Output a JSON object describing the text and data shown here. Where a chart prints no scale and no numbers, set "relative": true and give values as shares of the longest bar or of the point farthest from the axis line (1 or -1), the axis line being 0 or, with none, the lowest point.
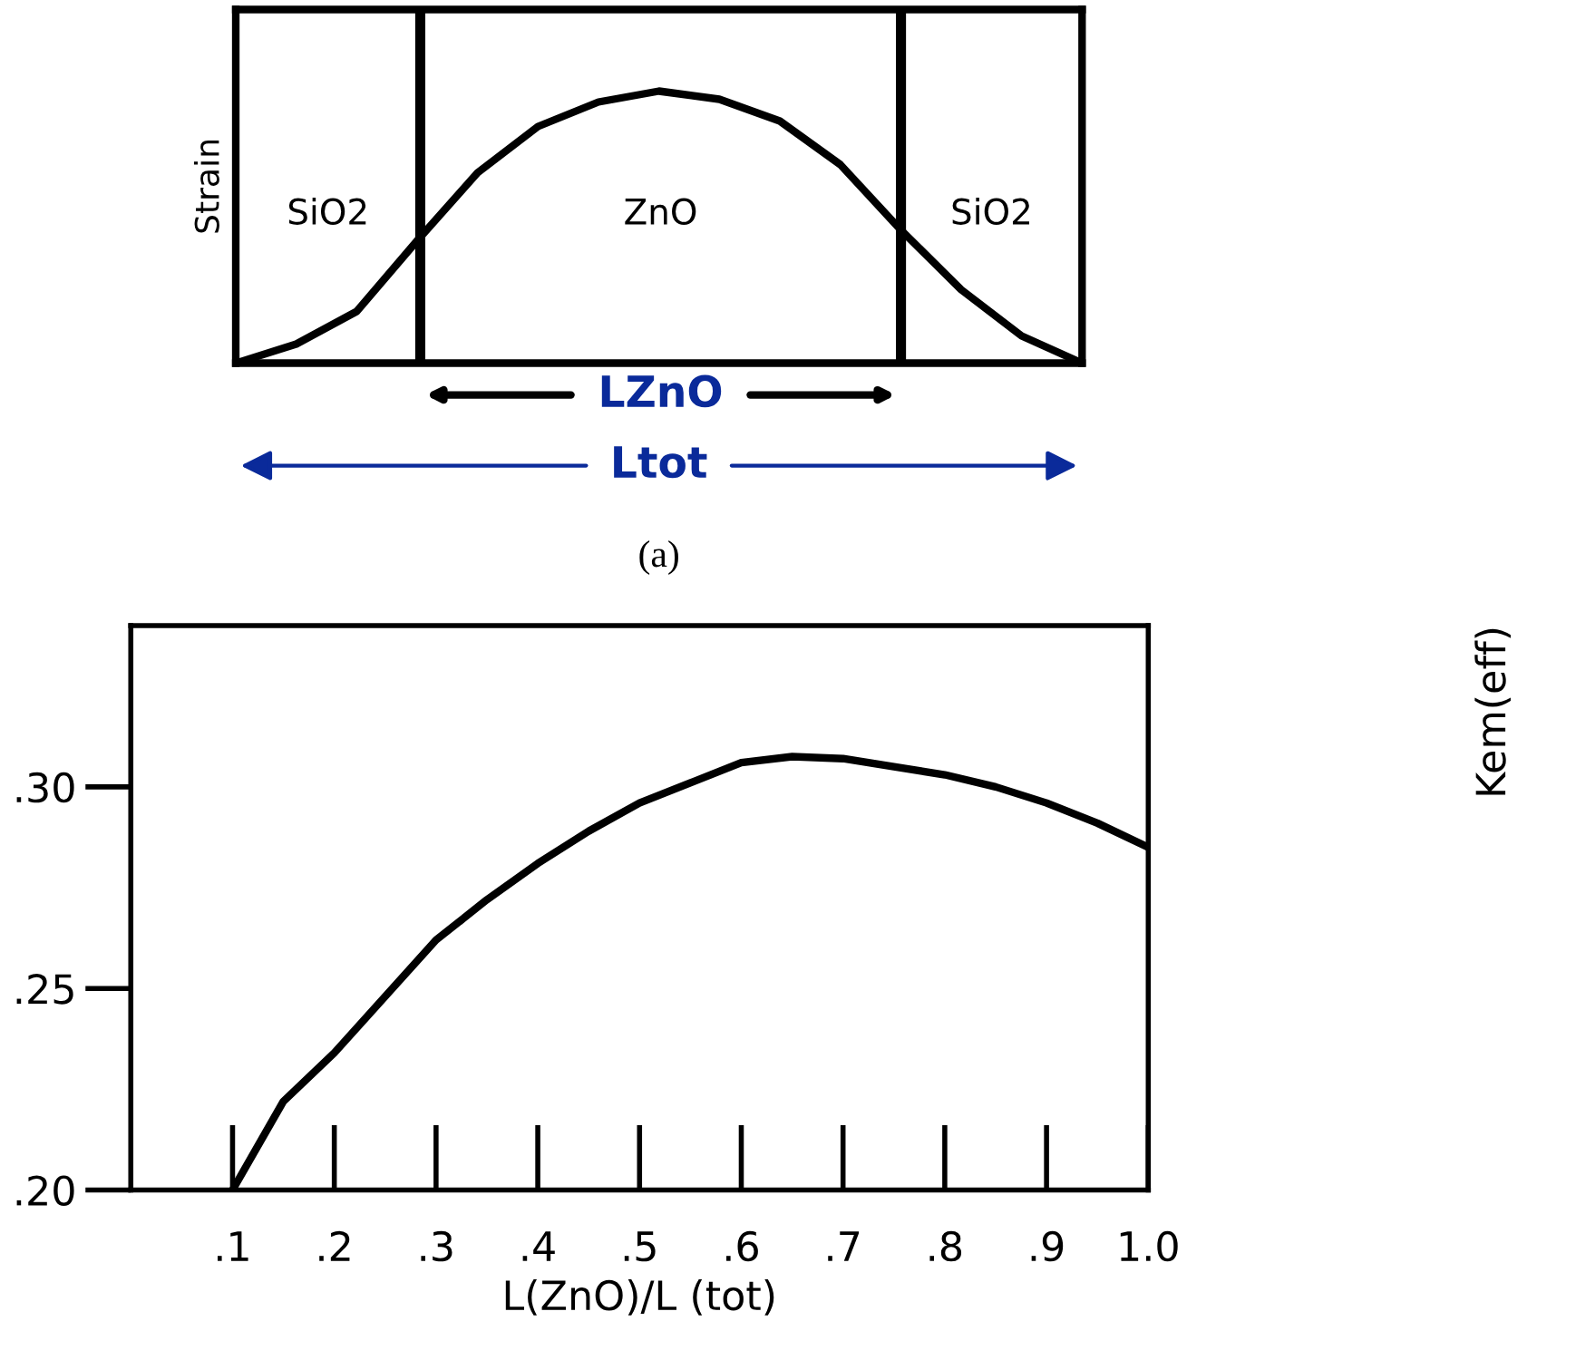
{
  "chart_data": [
    {
      "type": "line",
      "ylabel": "Strain",
      "relative": true,
      "grid": false,
      "legend": false,
      "categories": [
        null,
        null,
        null,
        null,
        null,
        null,
        null,
        null,
        null,
        null,
        null,
        null,
        null,
        null,
        null
      ],
      "series": [
        {
          "color": "#000000",
          "values": [
            0,
            0.07,
            0.19,
            0.45,
            0.7,
            0.87,
            0.96,
            1,
            0.97,
            0.89,
            0.73,
            0.49,
            0.27,
            0.1,
            0
          ]
        }
      ],
      "annotations": [
        "SiO2",
        "ZnO",
        "SiO2",
        "LZnO",
        "Ltot",
        "(a)"
      ]
    },
    {
      "type": "line",
      "xlabel": "L(ZnO)/L (tot)",
      "ylabel": "Kem(eff)",
      "grid": "x",
      "legend": false,
      "x": [
        0.1,
        0.15,
        0.2,
        0.25,
        0.3,
        0.35,
        0.4,
        0.45,
        0.5,
        0.55,
        0.6,
        0.65,
        0.7,
        0.75,
        0.8,
        0.85,
        0.9,
        0.95,
        1.0
      ],
      "series": [
        {
          "color": "#000000",
          "values": [
            0.2,
            0.222,
            0.234,
            0.248,
            0.262,
            0.272,
            0.281,
            0.289,
            0.296,
            0.301,
            0.306,
            0.3075,
            0.307,
            0.305,
            0.303,
            0.3,
            0.296,
            0.291,
            0.285
          ]
        }
      ],
      "xlim": [
        0.0,
        1.0
      ],
      "ylim": [
        0.2,
        0.34
      ],
      "xticks": [
        {
          "value": 0.1,
          "label": ".1"
        },
        {
          "value": 0.2,
          "label": ".2"
        },
        {
          "value": 0.3,
          "label": ".3"
        },
        {
          "value": 0.4,
          "label": ".4"
        },
        {
          "value": 0.5,
          "label": ".5"
        },
        {
          "value": 0.6,
          "label": ".6"
        },
        {
          "value": 0.7,
          "label": ".7"
        },
        {
          "value": 0.8,
          "label": ".8"
        },
        {
          "value": 0.9,
          "label": ".9"
        },
        {
          "value": 1.0,
          "label": "1.0"
        }
      ],
      "yticks": [
        {
          "value": 0.2,
          "label": ".20"
        },
        {
          "value": 0.25,
          "label": ".25"
        },
        {
          "value": 0.3,
          "label": ".30"
        }
      ]
    }
  ]
}
